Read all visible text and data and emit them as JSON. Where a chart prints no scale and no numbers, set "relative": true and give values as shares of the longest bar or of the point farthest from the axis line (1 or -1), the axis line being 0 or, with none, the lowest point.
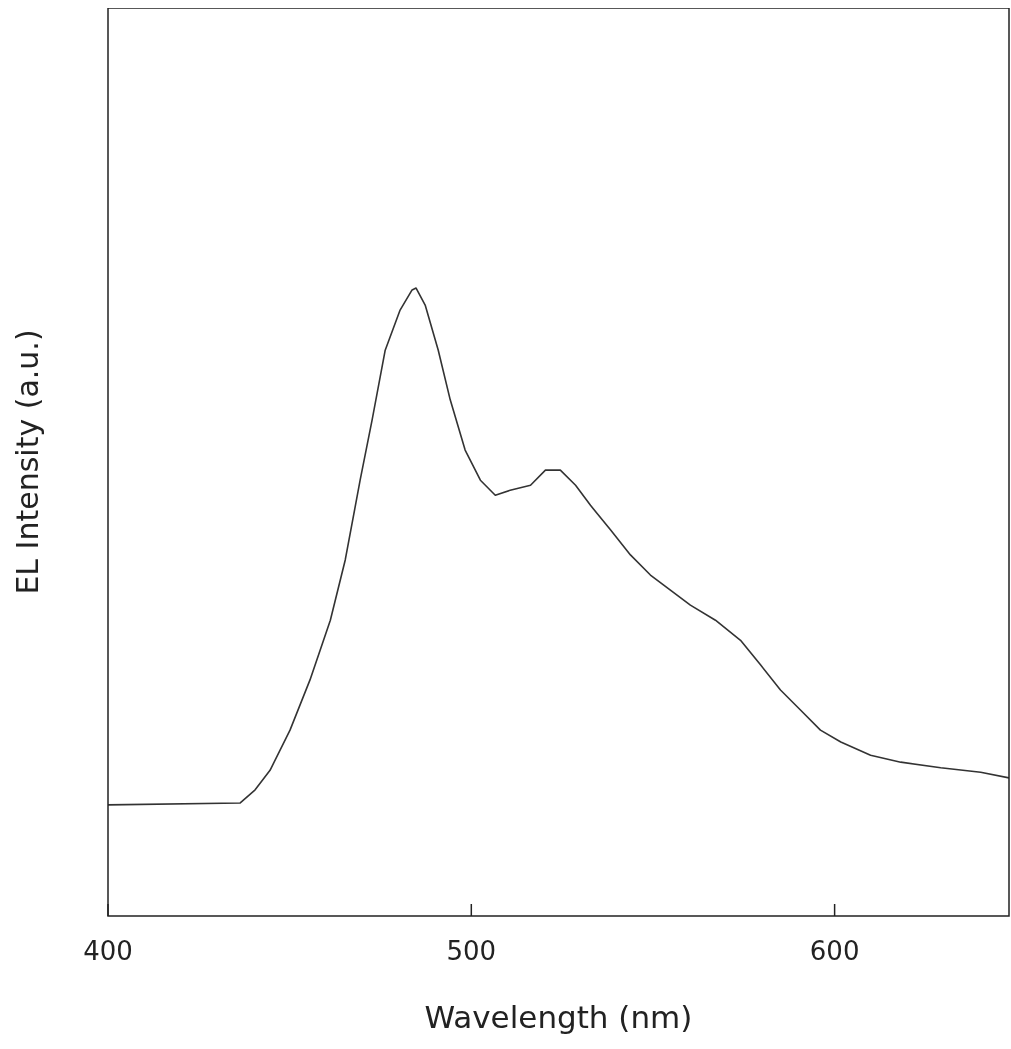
{
  "chart_data": {
    "type": "line",
    "relative": true,
    "xlabel": "Wavelength (nm)",
    "ylabel": "EL Intensity (a.u.)",
    "xlim": [
      400,
      648
    ],
    "xticks": [
      400,
      500,
      600
    ],
    "grid": false,
    "legend": false,
    "marker": "none",
    "line_style": "solid",
    "series": [
      {
        "color": "#333333",
        "x": [
          400,
          436.4,
          440.5,
          444.6,
          450.1,
          455.6,
          461.2,
          465.3,
          469.4,
          472.7,
          476.3,
          480.4,
          483.7,
          484.8,
          487.3,
          490.9,
          494.2,
          498.3,
          502.5,
          506.6,
          510.7,
          516.3,
          520.4,
          524.5,
          528.7,
          532.8,
          538.3,
          543.8,
          549.3,
          554.8,
          560.3,
          567.2,
          574.1,
          579.6,
          585.1,
          590.6,
          596.1,
          601.7,
          609.9,
          618.2,
          629.2,
          640.2,
          648
        ],
        "values": [
          0.177,
          0.18,
          0.201,
          0.232,
          0.296,
          0.376,
          0.471,
          0.567,
          0.694,
          0.79,
          0.901,
          0.965,
          0.997,
          1,
          0.973,
          0.901,
          0.822,
          0.742,
          0.694,
          0.67,
          0.678,
          0.686,
          0.71,
          0.71,
          0.686,
          0.654,
          0.615,
          0.575,
          0.543,
          0.519,
          0.495,
          0.471,
          0.439,
          0.4,
          0.36,
          0.328,
          0.296,
          0.277,
          0.256,
          0.245,
          0.236,
          0.229,
          0.22
        ]
      }
    ]
  }
}
